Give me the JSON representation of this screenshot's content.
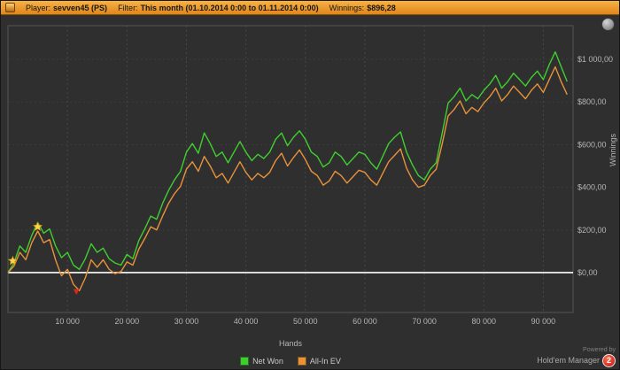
{
  "topbar": {
    "fields": [
      {
        "label": "Player:",
        "value": "sevven45 (PS)"
      },
      {
        "label": "Filter:",
        "value": "This month (01.10.2014 0:00 to 01.11.2014 0:00)"
      },
      {
        "label": "Winnings:",
        "value": "$896,28"
      }
    ]
  },
  "footer": {
    "powered_by": "Powered by",
    "brand": "Hold'em Manager",
    "badge": "2"
  },
  "chart_data": {
    "type": "line",
    "title": "",
    "xlabel": "Hands",
    "ylabel": "Winnings",
    "xlim": [
      0,
      95000
    ],
    "ylim": [
      -187,
      1158
    ],
    "grid": "dashed",
    "zero_line": true,
    "legend_position": "bottom-center",
    "x_ticks": [
      {
        "v": 10000,
        "label": "10 000"
      },
      {
        "v": 20000,
        "label": "20 000"
      },
      {
        "v": 30000,
        "label": "30 000"
      },
      {
        "v": 40000,
        "label": "40 000"
      },
      {
        "v": 50000,
        "label": "50 000"
      },
      {
        "v": 60000,
        "label": "60 000"
      },
      {
        "v": 70000,
        "label": "70 000"
      },
      {
        "v": 80000,
        "label": "80 000"
      },
      {
        "v": 90000,
        "label": "90 000"
      }
    ],
    "y_ticks": [
      {
        "v": 0,
        "label": "$0,00"
      },
      {
        "v": 200,
        "label": "$200,00"
      },
      {
        "v": 400,
        "label": "$400,00"
      },
      {
        "v": 600,
        "label": "$600,00"
      },
      {
        "v": 800,
        "label": "$800,00"
      },
      {
        "v": 1000,
        "label": "$1 000,00"
      }
    ],
    "series": [
      {
        "name": "Net Won",
        "color": "#3fcf2e",
        "points": [
          [
            0,
            0
          ],
          [
            1000,
            45
          ],
          [
            2000,
            125
          ],
          [
            3000,
            95
          ],
          [
            4000,
            175
          ],
          [
            5000,
            235
          ],
          [
            6000,
            185
          ],
          [
            7000,
            205
          ],
          [
            8000,
            125
          ],
          [
            9000,
            70
          ],
          [
            10000,
            95
          ],
          [
            11000,
            35
          ],
          [
            12000,
            15
          ],
          [
            13000,
            65
          ],
          [
            14000,
            135
          ],
          [
            15000,
            95
          ],
          [
            16000,
            115
          ],
          [
            17000,
            65
          ],
          [
            18000,
            45
          ],
          [
            19000,
            35
          ],
          [
            20000,
            85
          ],
          [
            21000,
            65
          ],
          [
            22000,
            150
          ],
          [
            23000,
            205
          ],
          [
            24000,
            265
          ],
          [
            25000,
            250
          ],
          [
            26000,
            325
          ],
          [
            27000,
            385
          ],
          [
            28000,
            435
          ],
          [
            29000,
            475
          ],
          [
            30000,
            565
          ],
          [
            31000,
            605
          ],
          [
            32000,
            560
          ],
          [
            33000,
            655
          ],
          [
            34000,
            605
          ],
          [
            35000,
            545
          ],
          [
            36000,
            565
          ],
          [
            37000,
            515
          ],
          [
            38000,
            565
          ],
          [
            39000,
            615
          ],
          [
            40000,
            565
          ],
          [
            41000,
            525
          ],
          [
            42000,
            555
          ],
          [
            43000,
            535
          ],
          [
            44000,
            565
          ],
          [
            45000,
            625
          ],
          [
            46000,
            655
          ],
          [
            47000,
            595
          ],
          [
            48000,
            635
          ],
          [
            49000,
            665
          ],
          [
            50000,
            625
          ],
          [
            51000,
            565
          ],
          [
            52000,
            545
          ],
          [
            53000,
            495
          ],
          [
            54000,
            515
          ],
          [
            55000,
            565
          ],
          [
            56000,
            545
          ],
          [
            57000,
            505
          ],
          [
            58000,
            535
          ],
          [
            59000,
            565
          ],
          [
            60000,
            555
          ],
          [
            61000,
            515
          ],
          [
            62000,
            485
          ],
          [
            63000,
            545
          ],
          [
            64000,
            605
          ],
          [
            65000,
            635
          ],
          [
            66000,
            660
          ],
          [
            67000,
            565
          ],
          [
            68000,
            505
          ],
          [
            69000,
            455
          ],
          [
            70000,
            435
          ],
          [
            71000,
            485
          ],
          [
            72000,
            515
          ],
          [
            73000,
            655
          ],
          [
            74000,
            795
          ],
          [
            75000,
            825
          ],
          [
            76000,
            865
          ],
          [
            77000,
            805
          ],
          [
            78000,
            835
          ],
          [
            79000,
            815
          ],
          [
            80000,
            855
          ],
          [
            81000,
            885
          ],
          [
            82000,
            925
          ],
          [
            83000,
            865
          ],
          [
            84000,
            895
          ],
          [
            85000,
            935
          ],
          [
            86000,
            905
          ],
          [
            87000,
            875
          ],
          [
            88000,
            915
          ],
          [
            89000,
            945
          ],
          [
            90000,
            905
          ],
          [
            91000,
            975
          ],
          [
            92000,
            1035
          ],
          [
            93000,
            965
          ],
          [
            94000,
            896
          ]
        ]
      },
      {
        "name": "All-In EV",
        "color": "#e8923a",
        "points": [
          [
            0,
            0
          ],
          [
            1000,
            30
          ],
          [
            2000,
            95
          ],
          [
            3000,
            60
          ],
          [
            4000,
            140
          ],
          [
            5000,
            195
          ],
          [
            6000,
            140
          ],
          [
            7000,
            155
          ],
          [
            8000,
            60
          ],
          [
            9000,
            -15
          ],
          [
            10000,
            15
          ],
          [
            11000,
            -55
          ],
          [
            12000,
            -85
          ],
          [
            13000,
            -25
          ],
          [
            14000,
            60
          ],
          [
            15000,
            25
          ],
          [
            16000,
            60
          ],
          [
            17000,
            15
          ],
          [
            18000,
            -5
          ],
          [
            19000,
            5
          ],
          [
            20000,
            50
          ],
          [
            21000,
            35
          ],
          [
            22000,
            110
          ],
          [
            23000,
            160
          ],
          [
            24000,
            215
          ],
          [
            25000,
            200
          ],
          [
            26000,
            265
          ],
          [
            27000,
            325
          ],
          [
            28000,
            370
          ],
          [
            29000,
            405
          ],
          [
            30000,
            485
          ],
          [
            31000,
            520
          ],
          [
            32000,
            475
          ],
          [
            33000,
            545
          ],
          [
            34000,
            500
          ],
          [
            35000,
            445
          ],
          [
            36000,
            465
          ],
          [
            37000,
            420
          ],
          [
            38000,
            470
          ],
          [
            39000,
            520
          ],
          [
            40000,
            470
          ],
          [
            41000,
            435
          ],
          [
            42000,
            465
          ],
          [
            43000,
            445
          ],
          [
            44000,
            470
          ],
          [
            45000,
            525
          ],
          [
            46000,
            560
          ],
          [
            47000,
            500
          ],
          [
            48000,
            540
          ],
          [
            49000,
            575
          ],
          [
            50000,
            530
          ],
          [
            51000,
            475
          ],
          [
            52000,
            455
          ],
          [
            53000,
            410
          ],
          [
            54000,
            430
          ],
          [
            55000,
            475
          ],
          [
            56000,
            455
          ],
          [
            57000,
            420
          ],
          [
            58000,
            450
          ],
          [
            59000,
            480
          ],
          [
            60000,
            470
          ],
          [
            61000,
            435
          ],
          [
            62000,
            410
          ],
          [
            63000,
            465
          ],
          [
            64000,
            520
          ],
          [
            65000,
            550
          ],
          [
            66000,
            580
          ],
          [
            67000,
            490
          ],
          [
            68000,
            435
          ],
          [
            69000,
            400
          ],
          [
            70000,
            410
          ],
          [
            71000,
            455
          ],
          [
            72000,
            485
          ],
          [
            73000,
            605
          ],
          [
            74000,
            735
          ],
          [
            75000,
            765
          ],
          [
            76000,
            805
          ],
          [
            77000,
            745
          ],
          [
            78000,
            775
          ],
          [
            79000,
            755
          ],
          [
            80000,
            795
          ],
          [
            81000,
            825
          ],
          [
            82000,
            865
          ],
          [
            83000,
            805
          ],
          [
            84000,
            835
          ],
          [
            85000,
            875
          ],
          [
            86000,
            845
          ],
          [
            87000,
            815
          ],
          [
            88000,
            855
          ],
          [
            89000,
            885
          ],
          [
            90000,
            845
          ],
          [
            91000,
            905
          ],
          [
            92000,
            965
          ],
          [
            93000,
            895
          ],
          [
            94000,
            835
          ]
        ]
      }
    ],
    "markers": [
      {
        "type": "star",
        "x": 800,
        "y": 55,
        "color": "#ffd24a"
      },
      {
        "type": "star",
        "x": 5000,
        "y": 215,
        "color": "#ffd24a"
      },
      {
        "type": "arrow-down",
        "x": 11500,
        "y": -90,
        "color": "#d42a1e"
      }
    ]
  }
}
